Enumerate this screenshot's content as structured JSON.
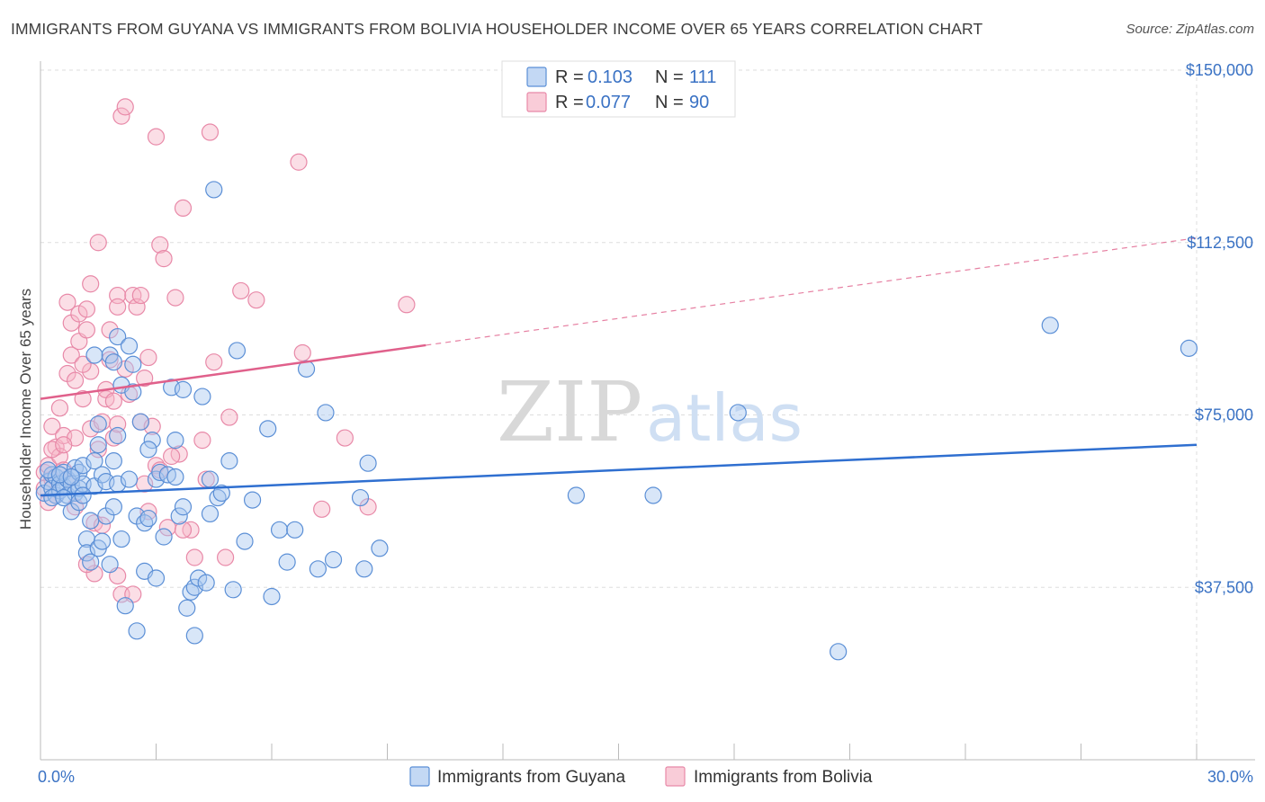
{
  "title": "IMMIGRANTS FROM GUYANA VS IMMIGRANTS FROM BOLIVIA HOUSEHOLDER INCOME OVER 65 YEARS CORRELATION CHART",
  "source": "Source: ZipAtlas.com",
  "watermark": {
    "zip": "ZIP",
    "atlas": "atlas"
  },
  "colors": {
    "guyana_fill": "#a9c8f0",
    "guyana_stroke": "#5b8fd6",
    "guyana_line": "#2f6fd0",
    "bolivia_fill": "#f6b6c8",
    "bolivia_stroke": "#e889a8",
    "bolivia_line": "#e0608b",
    "tick_label": "#3a72c4",
    "grid": "#dddddd"
  },
  "legend_top": {
    "r_label": "R =",
    "n_label": "N =",
    "items": [
      {
        "r": "0.103",
        "n": "111"
      },
      {
        "r": "0.077",
        "n": "90"
      }
    ]
  },
  "chart_data": {
    "type": "scatter",
    "title": "IMMIGRANTS FROM GUYANA VS IMMIGRANTS FROM BOLIVIA HOUSEHOLDER INCOME OVER 65 YEARS CORRELATION CHART",
    "xlabel": "",
    "ylabel": "Householder Income Over 65 years",
    "xlim": [
      0,
      30
    ],
    "ylim": [
      0,
      150000
    ],
    "x_tick_labels": [
      "0.0%",
      "30.0%"
    ],
    "y_ticks": [
      37500,
      75000,
      112500,
      150000
    ],
    "y_tick_labels": [
      "$37,500",
      "$75,000",
      "$112,500",
      "$150,000"
    ],
    "grid": true,
    "legend_position": "top-center",
    "series": [
      {
        "name": "Immigrants from Guyana",
        "R": 0.103,
        "N": 111,
        "trend": {
          "x": [
            0,
            30
          ],
          "y": [
            57500,
            68500
          ]
        },
        "points": [
          [
            0.1,
            58000
          ],
          [
            0.2,
            60500
          ],
          [
            0.3,
            62000
          ],
          [
            0.3,
            59000
          ],
          [
            0.4,
            57500
          ],
          [
            0.4,
            61500
          ],
          [
            0.5,
            60000
          ],
          [
            0.5,
            58500
          ],
          [
            0.6,
            59500
          ],
          [
            0.6,
            62500
          ],
          [
            0.7,
            61000
          ],
          [
            0.7,
            57500
          ],
          [
            0.8,
            60000
          ],
          [
            0.8,
            54000
          ],
          [
            0.9,
            63500
          ],
          [
            0.9,
            58000
          ],
          [
            1.0,
            62500
          ],
          [
            1.0,
            59000
          ],
          [
            1.0,
            56000
          ],
          [
            1.1,
            64000
          ],
          [
            1.1,
            60000
          ],
          [
            1.2,
            48000
          ],
          [
            1.2,
            45000
          ],
          [
            1.3,
            43000
          ],
          [
            1.3,
            52000
          ],
          [
            1.4,
            65000
          ],
          [
            1.4,
            59500
          ],
          [
            1.5,
            73000
          ],
          [
            1.5,
            68500
          ],
          [
            1.5,
            46000
          ],
          [
            1.6,
            62000
          ],
          [
            1.6,
            47500
          ],
          [
            1.7,
            60500
          ],
          [
            1.7,
            53000
          ],
          [
            1.8,
            42500
          ],
          [
            1.8,
            88000
          ],
          [
            1.9,
            86500
          ],
          [
            1.9,
            65000
          ],
          [
            2.0,
            60000
          ],
          [
            2.0,
            70500
          ],
          [
            2.0,
            92000
          ],
          [
            2.1,
            81500
          ],
          [
            2.1,
            48000
          ],
          [
            2.2,
            33500
          ],
          [
            2.3,
            61000
          ],
          [
            2.3,
            90000
          ],
          [
            2.4,
            86000
          ],
          [
            2.4,
            80000
          ],
          [
            2.5,
            28000
          ],
          [
            2.5,
            53000
          ],
          [
            2.6,
            73500
          ],
          [
            2.7,
            51500
          ],
          [
            2.7,
            41000
          ],
          [
            2.8,
            52500
          ],
          [
            2.9,
            69500
          ],
          [
            3.0,
            61000
          ],
          [
            3.0,
            39500
          ],
          [
            3.1,
            62500
          ],
          [
            3.2,
            48500
          ],
          [
            3.3,
            62000
          ],
          [
            3.4,
            81000
          ],
          [
            3.5,
            61500
          ],
          [
            3.6,
            53000
          ],
          [
            3.7,
            80500
          ],
          [
            3.7,
            55000
          ],
          [
            3.8,
            33000
          ],
          [
            3.9,
            36500
          ],
          [
            4.0,
            37500
          ],
          [
            4.0,
            27000
          ],
          [
            4.1,
            39500
          ],
          [
            4.2,
            79000
          ],
          [
            4.3,
            38500
          ],
          [
            4.4,
            53500
          ],
          [
            4.5,
            124000
          ],
          [
            4.6,
            57000
          ],
          [
            4.7,
            58000
          ],
          [
            4.9,
            65000
          ],
          [
            5.0,
            37000
          ],
          [
            5.1,
            89000
          ],
          [
            5.3,
            47500
          ],
          [
            5.5,
            56500
          ],
          [
            5.9,
            72000
          ],
          [
            6.0,
            35500
          ],
          [
            6.2,
            50000
          ],
          [
            6.4,
            43000
          ],
          [
            6.6,
            50000
          ],
          [
            6.9,
            85000
          ],
          [
            7.2,
            41500
          ],
          [
            7.4,
            75500
          ],
          [
            7.6,
            43500
          ],
          [
            8.3,
            57000
          ],
          [
            8.4,
            41500
          ],
          [
            8.5,
            64500
          ],
          [
            8.8,
            46000
          ],
          [
            13.9,
            57500
          ],
          [
            15.9,
            57500
          ],
          [
            18.1,
            75500
          ],
          [
            20.7,
            23500
          ],
          [
            26.2,
            94500
          ],
          [
            29.8,
            89500
          ],
          [
            0.2,
            63000
          ],
          [
            0.3,
            57000
          ],
          [
            0.5,
            62000
          ],
          [
            0.6,
            57000
          ],
          [
            0.8,
            61500
          ],
          [
            1.1,
            57500
          ],
          [
            1.9,
            55000
          ],
          [
            2.8,
            67500
          ],
          [
            3.5,
            69500
          ],
          [
            4.4,
            61000
          ],
          [
            1.4,
            88000
          ]
        ]
      },
      {
        "name": "Immigrants from Bolivia",
        "R": 0.077,
        "N": 90,
        "trend": {
          "x": [
            0,
            30
          ],
          "y": [
            78500,
            113500
          ],
          "solid_until_x": 10
        },
        "points": [
          [
            0.1,
            59000
          ],
          [
            0.1,
            62500
          ],
          [
            0.2,
            56000
          ],
          [
            0.2,
            64000
          ],
          [
            0.3,
            61000
          ],
          [
            0.3,
            72500
          ],
          [
            0.4,
            68000
          ],
          [
            0.4,
            57500
          ],
          [
            0.5,
            66000
          ],
          [
            0.5,
            76500
          ],
          [
            0.6,
            70500
          ],
          [
            0.6,
            63000
          ],
          [
            0.7,
            84000
          ],
          [
            0.7,
            61000
          ],
          [
            0.7,
            99500
          ],
          [
            0.8,
            95000
          ],
          [
            0.8,
            88000
          ],
          [
            0.9,
            82500
          ],
          [
            0.9,
            70000
          ],
          [
            1.0,
            91000
          ],
          [
            1.0,
            97000
          ],
          [
            1.1,
            78500
          ],
          [
            1.2,
            93500
          ],
          [
            1.2,
            98000
          ],
          [
            1.3,
            103500
          ],
          [
            1.3,
            84500
          ],
          [
            1.3,
            72000
          ],
          [
            1.4,
            51500
          ],
          [
            1.4,
            40500
          ],
          [
            1.5,
            67500
          ],
          [
            1.5,
            112500
          ],
          [
            1.6,
            73500
          ],
          [
            1.7,
            78500
          ],
          [
            1.7,
            80500
          ],
          [
            1.8,
            93500
          ],
          [
            1.8,
            87000
          ],
          [
            1.9,
            70000
          ],
          [
            1.9,
            78000
          ],
          [
            2.0,
            73000
          ],
          [
            2.0,
            101000
          ],
          [
            2.0,
            98500
          ],
          [
            2.0,
            40000
          ],
          [
            2.1,
            36000
          ],
          [
            2.1,
            140000
          ],
          [
            2.2,
            142000
          ],
          [
            2.3,
            79500
          ],
          [
            2.4,
            36000
          ],
          [
            2.4,
            101000
          ],
          [
            2.5,
            98500
          ],
          [
            2.6,
            73500
          ],
          [
            2.6,
            101000
          ],
          [
            2.7,
            83000
          ],
          [
            2.8,
            87500
          ],
          [
            2.8,
            54000
          ],
          [
            2.9,
            72500
          ],
          [
            3.0,
            64000
          ],
          [
            3.1,
            112000
          ],
          [
            3.1,
            63000
          ],
          [
            3.2,
            109000
          ],
          [
            3.3,
            50500
          ],
          [
            3.5,
            100500
          ],
          [
            3.6,
            66500
          ],
          [
            3.7,
            120000
          ],
          [
            3.9,
            50000
          ],
          [
            4.0,
            44000
          ],
          [
            4.2,
            69500
          ],
          [
            4.4,
            136500
          ],
          [
            4.5,
            86500
          ],
          [
            4.8,
            44000
          ],
          [
            4.9,
            74500
          ],
          [
            5.2,
            102000
          ],
          [
            5.6,
            100000
          ],
          [
            6.7,
            130000
          ],
          [
            6.8,
            88500
          ],
          [
            7.3,
            54500
          ],
          [
            7.9,
            70000
          ],
          [
            8.5,
            55000
          ],
          [
            9.5,
            99000
          ],
          [
            0.3,
            67500
          ],
          [
            0.6,
            68500
          ],
          [
            1.1,
            86000
          ],
          [
            1.6,
            51000
          ],
          [
            2.2,
            85000
          ],
          [
            2.7,
            60000
          ],
          [
            3.0,
            135500
          ],
          [
            3.4,
            66000
          ],
          [
            3.7,
            50000
          ],
          [
            4.3,
            61000
          ],
          [
            0.9,
            55000
          ],
          [
            1.2,
            42500
          ]
        ]
      }
    ]
  }
}
